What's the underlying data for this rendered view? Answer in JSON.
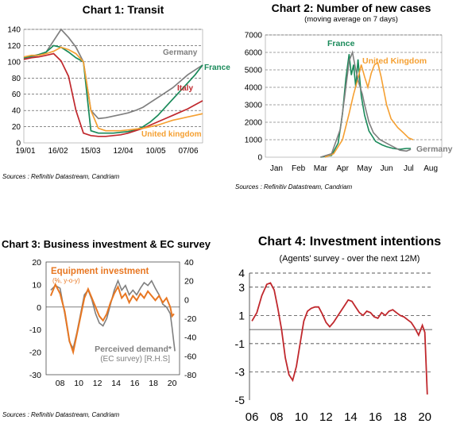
{
  "chart_data": [
    {
      "type": "line",
      "title": "Chart 1: Transit",
      "source": "Sources : Refinitiv Datastream, Candriam",
      "x_ticks": [
        "19/01",
        "16/02",
        "15/03",
        "12/04",
        "10/05",
        "07/06"
      ],
      "ylim": [
        0,
        140
      ],
      "y_ticks": [
        0,
        20,
        40,
        60,
        80,
        100,
        120,
        140
      ],
      "grid": "dashed horizontal",
      "x": [
        0,
        7,
        14,
        21,
        28,
        35,
        42,
        49,
        56,
        63,
        70,
        77,
        84,
        91,
        98,
        105,
        112,
        119,
        126,
        133,
        140,
        147,
        154,
        161,
        168
      ],
      "series": [
        {
          "name": "Germany",
          "color": "#7f7f7f",
          "label_position": "upper-right",
          "values": [
            104,
            106,
            108,
            112,
            126,
            140,
            130,
            118,
            100,
            40,
            30,
            31,
            33,
            35,
            37,
            40,
            44,
            50,
            56,
            62,
            68,
            76,
            84,
            90,
            96
          ]
        },
        {
          "name": "France",
          "color": "#1a8a5a",
          "label_position": "right",
          "values": [
            105,
            107,
            109,
            112,
            120,
            118,
            112,
            105,
            100,
            15,
            12,
            12,
            12,
            13,
            14,
            16,
            20,
            26,
            34,
            44,
            54,
            64,
            74,
            84,
            96
          ]
        },
        {
          "name": "Italy",
          "color": "#c0282d",
          "label_position": "right",
          "values": [
            103,
            105,
            106,
            108,
            110,
            101,
            82,
            40,
            12,
            9,
            8,
            8,
            9,
            10,
            12,
            15,
            18,
            22,
            26,
            30,
            34,
            38,
            42,
            47,
            52
          ]
        },
        {
          "name": "United kingdom",
          "color": "#f5a032",
          "label_position": "lower-right",
          "values": [
            106,
            108,
            108,
            110,
            113,
            118,
            115,
            110,
            100,
            40,
            18,
            15,
            15,
            15,
            16,
            17,
            18,
            20,
            22,
            25,
            28,
            30,
            32,
            34,
            36
          ]
        }
      ]
    },
    {
      "type": "line",
      "title": "Chart 2: Number of new cases",
      "subtitle": "(moving average on 7 days)",
      "source": "Sources : Refinitiv Datastream, Candriam",
      "x_ticks": [
        "Jan",
        "Feb",
        "Mar",
        "Apr",
        "May",
        "Jun",
        "Jul",
        "Aug"
      ],
      "ylim": [
        0,
        7000
      ],
      "y_ticks": [
        0,
        1000,
        2000,
        3000,
        4000,
        5000,
        6000,
        7000
      ],
      "grid": "dashed horizontal",
      "series": [
        {
          "name": "France",
          "color": "#1a8a5a",
          "label_position": "top",
          "points": [
            [
              2.0,
              0
            ],
            [
              2.5,
              100
            ],
            [
              2.8,
              800
            ],
            [
              3.0,
              2500
            ],
            [
              3.15,
              4500
            ],
            [
              3.3,
              5900
            ],
            [
              3.4,
              4700
            ],
            [
              3.5,
              5300
            ],
            [
              3.6,
              4000
            ],
            [
              3.7,
              5600
            ],
            [
              3.85,
              3500
            ],
            [
              4.0,
              2400
            ],
            [
              4.2,
              1500
            ],
            [
              4.5,
              900
            ],
            [
              4.8,
              700
            ],
            [
              5.0,
              600
            ],
            [
              5.3,
              500
            ],
            [
              5.6,
              450
            ],
            [
              5.9,
              500
            ],
            [
              6.1,
              500
            ]
          ]
        },
        {
          "name": "United Kingdom",
          "color": "#f5a032",
          "label_position": "top-right",
          "points": [
            [
              2.2,
              0
            ],
            [
              2.6,
              200
            ],
            [
              3.0,
              1000
            ],
            [
              3.3,
              2500
            ],
            [
              3.5,
              3600
            ],
            [
              3.7,
              4500
            ],
            [
              3.85,
              5300
            ],
            [
              4.0,
              4600
            ],
            [
              4.15,
              4000
            ],
            [
              4.3,
              4800
            ],
            [
              4.45,
              5300
            ],
            [
              4.6,
              5400
            ],
            [
              4.75,
              4600
            ],
            [
              5.0,
              3000
            ],
            [
              5.2,
              2200
            ],
            [
              5.5,
              1700
            ],
            [
              5.8,
              1350
            ],
            [
              6.0,
              1100
            ],
            [
              6.2,
              1000
            ]
          ]
        },
        {
          "name": "Germany",
          "color": "#7f7f7f",
          "label_position": "bottom-right",
          "points": [
            [
              2.0,
              0
            ],
            [
              2.5,
              200
            ],
            [
              2.9,
              1600
            ],
            [
              3.1,
              3500
            ],
            [
              3.3,
              5500
            ],
            [
              3.45,
              6000
            ],
            [
              3.6,
              5000
            ],
            [
              3.75,
              4200
            ],
            [
              3.9,
              3600
            ],
            [
              4.0,
              3000
            ],
            [
              4.2,
              2000
            ],
            [
              4.4,
              1400
            ],
            [
              4.7,
              1000
            ],
            [
              5.0,
              800
            ],
            [
              5.3,
              600
            ],
            [
              5.6,
              400
            ],
            [
              5.9,
              350
            ],
            [
              6.1,
              450
            ]
          ]
        }
      ]
    },
    {
      "type": "line",
      "title": "Chart 3: Business investment & EC survey",
      "source": "Sources : Refinitiv Datastream, Candriam",
      "x_ticks": [
        "08",
        "10",
        "12",
        "14",
        "16",
        "18",
        "20"
      ],
      "ylim_left": [
        -30,
        20
      ],
      "ylim_right": [
        -80,
        40
      ],
      "y_ticks_left": [
        -30,
        -20,
        -10,
        0,
        10,
        20
      ],
      "y_ticks_right": [
        -80,
        -60,
        -40,
        -20,
        0,
        20,
        40
      ],
      "annotations": [
        "Equipment investment",
        "(%, y-o-y)",
        "Perceived demand*",
        "(EC survey) [R.H.S]"
      ],
      "series": [
        {
          "name": "Equipment investment",
          "color": "#e87722",
          "axis": "left",
          "points": [
            [
              2007,
              5
            ],
            [
              2007.5,
              10
            ],
            [
              2008,
              6
            ],
            [
              2008.5,
              -2
            ],
            [
              2009,
              -15
            ],
            [
              2009.4,
              -20
            ],
            [
              2009.8,
              -12
            ],
            [
              2010.2,
              -4
            ],
            [
              2010.6,
              4
            ],
            [
              2011,
              8
            ],
            [
              2011.4,
              4
            ],
            [
              2011.8,
              0
            ],
            [
              2012.2,
              -4
            ],
            [
              2012.6,
              -6
            ],
            [
              2013,
              -3
            ],
            [
              2013.4,
              2
            ],
            [
              2013.8,
              6
            ],
            [
              2014.2,
              9
            ],
            [
              2014.6,
              4
            ],
            [
              2015,
              6
            ],
            [
              2015.4,
              2
            ],
            [
              2015.8,
              5
            ],
            [
              2016.2,
              3
            ],
            [
              2016.6,
              6
            ],
            [
              2017,
              4
            ],
            [
              2017.4,
              7
            ],
            [
              2017.8,
              5
            ],
            [
              2018.2,
              3
            ],
            [
              2018.6,
              5
            ],
            [
              2019,
              2
            ],
            [
              2019.4,
              4
            ],
            [
              2019.8,
              0
            ],
            [
              2020,
              -4
            ],
            [
              2020.2,
              -3
            ]
          ]
        },
        {
          "name": "Perceived demand",
          "color": "#7f7f7f",
          "axis": "right",
          "points": [
            [
              2007,
              10
            ],
            [
              2007.5,
              15
            ],
            [
              2008,
              12
            ],
            [
              2008.5,
              -15
            ],
            [
              2009,
              -45
            ],
            [
              2009.4,
              -52
            ],
            [
              2009.8,
              -35
            ],
            [
              2010.2,
              -15
            ],
            [
              2010.6,
              5
            ],
            [
              2011,
              10
            ],
            [
              2011.4,
              0
            ],
            [
              2011.8,
              -15
            ],
            [
              2012.2,
              -25
            ],
            [
              2012.6,
              -28
            ],
            [
              2013,
              -20
            ],
            [
              2013.4,
              -5
            ],
            [
              2013.8,
              10
            ],
            [
              2014.2,
              20
            ],
            [
              2014.6,
              10
            ],
            [
              2015,
              15
            ],
            [
              2015.4,
              5
            ],
            [
              2015.8,
              10
            ],
            [
              2016.2,
              5
            ],
            [
              2016.6,
              12
            ],
            [
              2017,
              18
            ],
            [
              2017.4,
              15
            ],
            [
              2017.8,
              20
            ],
            [
              2018.2,
              12
            ],
            [
              2018.6,
              5
            ],
            [
              2019,
              -5
            ],
            [
              2019.4,
              -8
            ],
            [
              2019.8,
              -15
            ],
            [
              2020,
              -30
            ],
            [
              2020.3,
              -55
            ]
          ]
        }
      ]
    },
    {
      "type": "line",
      "title": "Chart 4: Investment intentions",
      "subtitle": "(Agents' survey  - over the next 12M)",
      "x_ticks": [
        "06",
        "08",
        "10",
        "12",
        "14",
        "16",
        "18",
        "20"
      ],
      "ylim": [
        -5,
        4
      ],
      "y_ticks": [
        4,
        3,
        1,
        -1,
        -3,
        -5
      ],
      "grid": "dashed horizontal",
      "series": [
        {
          "name": "Investment intentions",
          "color": "#c0282d",
          "points": [
            [
              2006,
              0.6
            ],
            [
              2006.4,
              1.2
            ],
            [
              2006.8,
              2.4
            ],
            [
              2007.2,
              3.2
            ],
            [
              2007.5,
              3.3
            ],
            [
              2007.8,
              2.8
            ],
            [
              2008.1,
              1.5
            ],
            [
              2008.4,
              0
            ],
            [
              2008.7,
              -2
            ],
            [
              2009,
              -3.2
            ],
            [
              2009.3,
              -3.6
            ],
            [
              2009.6,
              -2.6
            ],
            [
              2009.9,
              -1
            ],
            [
              2010.2,
              0.6
            ],
            [
              2010.5,
              1.3
            ],
            [
              2010.8,
              1.5
            ],
            [
              2011.1,
              1.6
            ],
            [
              2011.4,
              1.6
            ],
            [
              2011.7,
              1.1
            ],
            [
              2012,
              0.5
            ],
            [
              2012.3,
              0.2
            ],
            [
              2012.6,
              0.5
            ],
            [
              2012.9,
              0.9
            ],
            [
              2013.2,
              1.3
            ],
            [
              2013.5,
              1.7
            ],
            [
              2013.8,
              2.1
            ],
            [
              2014.1,
              2.0
            ],
            [
              2014.4,
              1.6
            ],
            [
              2014.7,
              1.2
            ],
            [
              2015,
              1.0
            ],
            [
              2015.3,
              1.3
            ],
            [
              2015.6,
              1.2
            ],
            [
              2015.9,
              0.9
            ],
            [
              2016.2,
              0.8
            ],
            [
              2016.5,
              1.2
            ],
            [
              2016.8,
              1.0
            ],
            [
              2017.1,
              1.3
            ],
            [
              2017.4,
              1.4
            ],
            [
              2017.7,
              1.2
            ],
            [
              2018,
              1.0
            ],
            [
              2018.3,
              0.9
            ],
            [
              2018.6,
              0.7
            ],
            [
              2018.9,
              0.5
            ],
            [
              2019.2,
              0.1
            ],
            [
              2019.5,
              -0.4
            ],
            [
              2019.8,
              0.3
            ],
            [
              2020,
              -0.2
            ],
            [
              2020.2,
              -4.6
            ]
          ]
        }
      ]
    }
  ]
}
